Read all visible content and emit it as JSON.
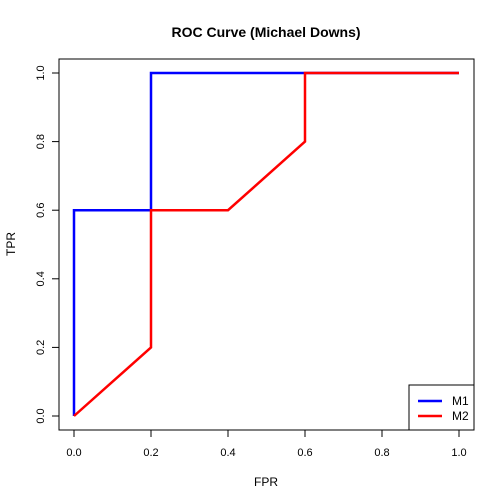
{
  "chart_data": {
    "type": "line",
    "title": "ROC Curve (Michael Downs)",
    "xlabel": "FPR",
    "ylabel": "TPR",
    "xlim": [
      0,
      1
    ],
    "ylim": [
      0,
      1
    ],
    "x_ticks": [
      "0.0",
      "0.2",
      "0.4",
      "0.6",
      "0.8",
      "1.0"
    ],
    "y_ticks": [
      "0.0",
      "0.2",
      "0.4",
      "0.6",
      "0.8",
      "1.0"
    ],
    "grid": false,
    "legend_position": "bottom-right",
    "series": [
      {
        "name": "M1",
        "color": "#0000ff",
        "points": [
          [
            0,
            0
          ],
          [
            0,
            0.6
          ],
          [
            0.2,
            0.6
          ],
          [
            0.2,
            1.0
          ],
          [
            0.6,
            1.0
          ],
          [
            1.0,
            1.0
          ]
        ]
      },
      {
        "name": "M2",
        "color": "#ff0000",
        "points": [
          [
            0,
            0
          ],
          [
            0.2,
            0.2
          ],
          [
            0.2,
            0.6
          ],
          [
            0.4,
            0.6
          ],
          [
            0.6,
            0.8
          ],
          [
            0.6,
            1.0
          ],
          [
            1.0,
            1.0
          ]
        ]
      }
    ]
  }
}
